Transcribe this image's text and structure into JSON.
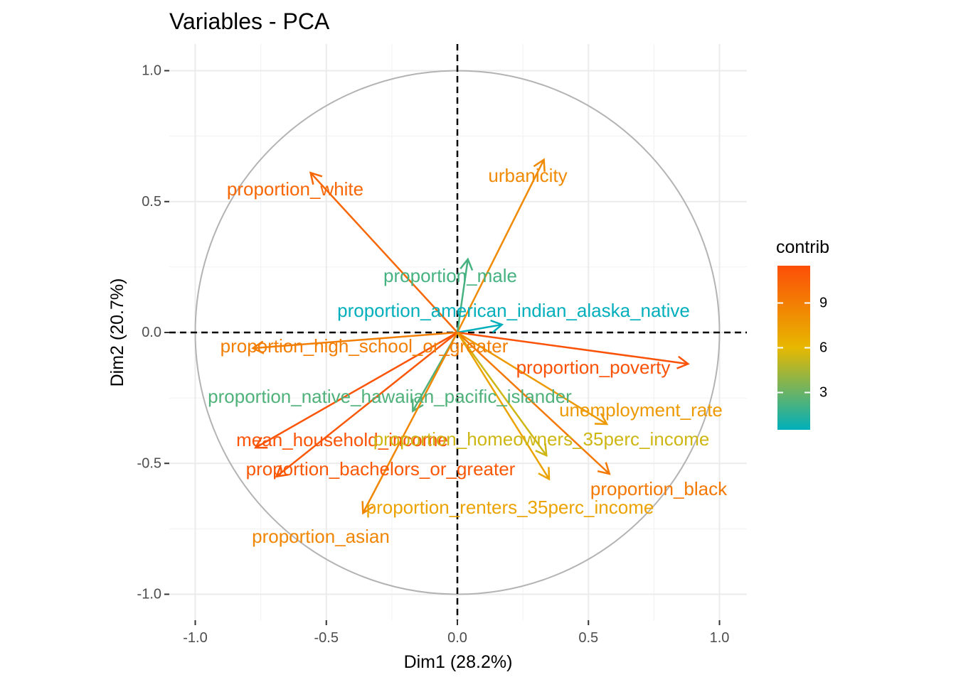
{
  "chart_data": {
    "type": "scatter",
    "title": "Variables - PCA",
    "xlabel": "Dim1 (28.2%)",
    "ylabel": "Dim2 (20.7%)",
    "xlim": [
      -1.1,
      1.1
    ],
    "ylim": [
      -1.1,
      1.1
    ],
    "x_ticks": [
      -1.0,
      -0.5,
      0.0,
      0.5,
      1.0
    ],
    "y_ticks": [
      -1.0,
      -0.5,
      0.0,
      0.5,
      1.0
    ],
    "x_tick_labels": [
      "-1.0",
      "-0.5",
      "0.0",
      "0.5",
      "1.0"
    ],
    "y_tick_labels": [
      "-1.0",
      "-0.5",
      "0.0",
      "0.5",
      "1.0"
    ],
    "grid": true,
    "correlation_circle": true,
    "legend": {
      "title": "contrib",
      "placement": "right",
      "ticks": [
        3,
        6,
        9
      ],
      "tick_labels": [
        "3",
        "6",
        "9"
      ],
      "range": [
        0.5,
        11.5
      ],
      "gradient": [
        "#00AFBB",
        "#E7B800",
        "#FC4E07"
      ]
    },
    "variables": [
      {
        "name": "proportion_white",
        "x": -0.56,
        "y": 0.61,
        "contrib": 10.2
      },
      {
        "name": "urbanicity",
        "x": 0.33,
        "y": 0.66,
        "contrib": 8.4
      },
      {
        "name": "proportion_male",
        "x": 0.04,
        "y": 0.28,
        "contrib": 2.2
      },
      {
        "name": "proportion_american_indian_alaska_native",
        "x": 0.17,
        "y": 0.03,
        "contrib": 0.5
      },
      {
        "name": "proportion_high_school_or_greater",
        "x": -0.78,
        "y": -0.06,
        "contrib": 9.0
      },
      {
        "name": "proportion_poverty",
        "x": 0.88,
        "y": -0.12,
        "contrib": 11.3
      },
      {
        "name": "proportion_native_hawaiian_pacific_islander",
        "x": -0.17,
        "y": -0.3,
        "contrib": 2.4
      },
      {
        "name": "unemployment_rate",
        "x": 0.57,
        "y": -0.35,
        "contrib": 7.6
      },
      {
        "name": "mean_household_income",
        "x": -0.77,
        "y": -0.44,
        "contrib": 11.2
      },
      {
        "name": "proportion_homeowners_35perc_income",
        "x": 0.34,
        "y": -0.47,
        "contrib": 5.4
      },
      {
        "name": "proportion_bachelors_or_greater",
        "x": -0.69,
        "y": -0.55,
        "contrib": 11.0
      },
      {
        "name": "proportion_black",
        "x": 0.58,
        "y": -0.54,
        "contrib": 9.3
      },
      {
        "name": "proportion_renters_35perc_income",
        "x": 0.35,
        "y": -0.56,
        "contrib": 7.1
      },
      {
        "name": "proportion_asian",
        "x": -0.36,
        "y": -0.69,
        "contrib": 8.6
      }
    ]
  }
}
